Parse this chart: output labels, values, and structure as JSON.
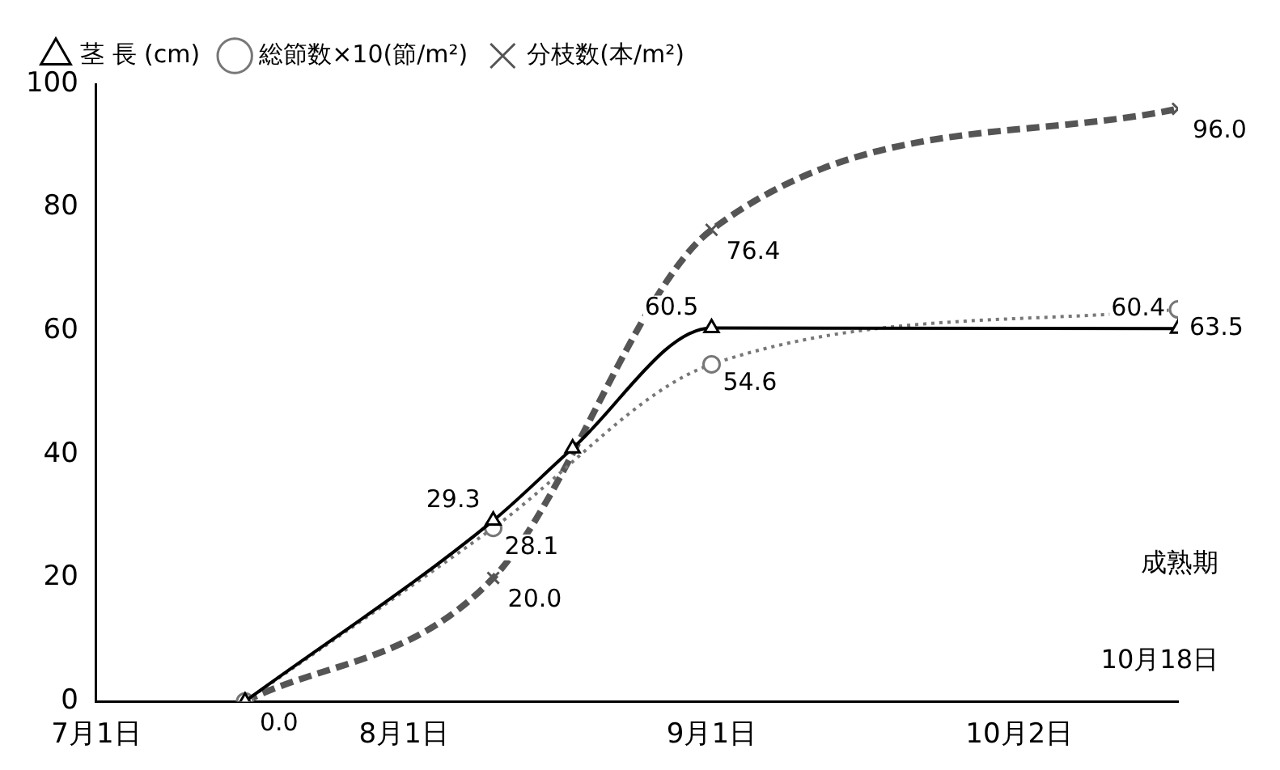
{
  "chart_data": {
    "type": "line",
    "xlim": [
      "--07-01",
      "--10-18"
    ],
    "xticks": [
      {
        "value": "--07-01",
        "label": "7月1日"
      },
      {
        "value": "--08-01",
        "label": "8月1日"
      },
      {
        "value": "--09-01",
        "label": "9月1日"
      },
      {
        "value": "--10-02",
        "label": "10月2日"
      }
    ],
    "ylim": [
      0,
      100
    ],
    "yticks": [
      0,
      20,
      40,
      60,
      80,
      100
    ],
    "grid": false,
    "legend": "top left",
    "series": [
      {
        "name": "茎 長 (cm)",
        "color": "#000000",
        "marker": "triangle",
        "line_style": "solid",
        "x": [
          "--07-16",
          "--08-10",
          "--08-18",
          "--09-01",
          "--10-18"
        ],
        "values": [
          0,
          29.3,
          41,
          60.5,
          60.4
        ],
        "value_labels": [
          null,
          "29.3",
          null,
          "60.5",
          "60.4"
        ]
      },
      {
        "name": "総節数×10(節/m²)",
        "color": "#777777",
        "marker": "circle",
        "line_style": "dotted",
        "x": [
          "--07-16",
          "--08-10",
          "--09-01",
          "--10-18"
        ],
        "values": [
          0,
          28.1,
          54.6,
          63.5
        ],
        "value_labels": [
          null,
          "28.1",
          "54.6",
          "63.5"
        ]
      },
      {
        "name": "分枝数(本/m²)",
        "color": "#555555",
        "marker": "cross",
        "line_style": "dashed",
        "x": [
          "--07-16",
          "--08-10",
          "--09-01",
          "--10-18"
        ],
        "values": [
          0,
          20.0,
          76.4,
          96.0
        ],
        "value_labels": [
          "0.0",
          "20.0",
          "76.4",
          "96.0"
        ]
      }
    ],
    "annotations": [
      "成熟期",
      "10月18日"
    ]
  }
}
